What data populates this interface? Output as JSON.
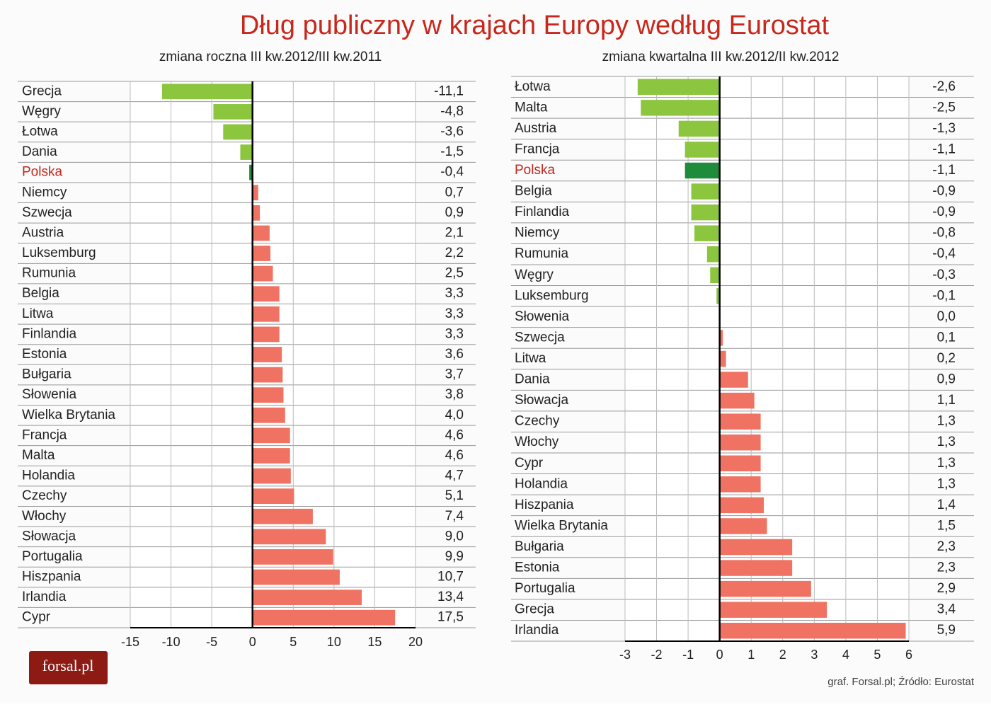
{
  "title": "Dług publiczny w krajach Europy według Eurostat",
  "source": "graf. Forsal.pl; Źródło: Eurostat",
  "logo": "forsal.pl",
  "chart_data": [
    {
      "type": "bar",
      "orientation": "horizontal",
      "subtitle": "zmiana roczna III kw.2012/III kw.2011",
      "categories": [
        "Grecja",
        "Węgry",
        "Łotwa",
        "Dania",
        "Polska",
        "Niemcy",
        "Szwecja",
        "Austria",
        "Luksemburg",
        "Rumunia",
        "Belgia",
        "Litwa",
        "Finlandia",
        "Estonia",
        "Bułgaria",
        "Słowenia",
        "Wielka Brytania",
        "Francja",
        "Malta",
        "Holandia",
        "Czechy",
        "Włochy",
        "Słowacja",
        "Portugalia",
        "Hiszpania",
        "Irlandia",
        "Cypr"
      ],
      "values": [
        -11.1,
        -4.8,
        -3.6,
        -1.5,
        -0.4,
        0.7,
        0.9,
        2.1,
        2.2,
        2.5,
        3.3,
        3.3,
        3.3,
        3.6,
        3.7,
        3.8,
        4.0,
        4.6,
        4.6,
        4.7,
        5.1,
        7.4,
        9.0,
        9.9,
        10.7,
        13.4,
        17.5
      ],
      "value_labels": [
        "-11,1",
        "-4,8",
        "-3,6",
        "-1,5",
        "-0,4",
        "0,7",
        "0,9",
        "2,1",
        "2,2",
        "2,5",
        "3,3",
        "3,3",
        "3,3",
        "3,6",
        "3,7",
        "3,8",
        "4,0",
        "4,6",
        "4,6",
        "4,7",
        "5,1",
        "7,4",
        "9,0",
        "9,9",
        "10,7",
        "13,4",
        "17,5"
      ],
      "colors": [
        "#8cc63e",
        "#8cc63e",
        "#8cc63e",
        "#8cc63e",
        "#1e8c3a",
        "#f07262",
        "#f07262",
        "#f07262",
        "#f07262",
        "#f07262",
        "#f07262",
        "#f07262",
        "#f07262",
        "#f07262",
        "#f07262",
        "#f07262",
        "#f07262",
        "#f07262",
        "#f07262",
        "#f07262",
        "#f07262",
        "#f07262",
        "#f07262",
        "#f07262",
        "#f07262",
        "#f07262",
        "#f07262"
      ],
      "label_colors": [
        "#222",
        "#222",
        "#222",
        "#222",
        "#c0281c",
        "#222",
        "#222",
        "#222",
        "#222",
        "#222",
        "#222",
        "#222",
        "#222",
        "#222",
        "#222",
        "#222",
        "#222",
        "#222",
        "#222",
        "#222",
        "#222",
        "#222",
        "#222",
        "#222",
        "#222",
        "#222",
        "#222"
      ],
      "xlim": [
        -15,
        20
      ],
      "xticks": [
        -15,
        -10,
        -5,
        0,
        5,
        10,
        15,
        20
      ],
      "grid": true
    },
    {
      "type": "bar",
      "orientation": "horizontal",
      "subtitle": "zmiana kwartalna III kw.2012/II kw.2012",
      "categories": [
        "Łotwa",
        "Malta",
        "Austria",
        "Francja",
        "Polska",
        "Belgia",
        "Finlandia",
        "Niemcy",
        "Rumunia",
        "Węgry",
        "Luksemburg",
        "Słowenia",
        "Szwecja",
        "Litwa",
        "Dania",
        "Słowacja",
        "Czechy",
        "Włochy",
        "Cypr",
        "Holandia",
        "Hiszpania",
        "Wielka Brytania",
        "Bułgaria",
        "Estonia",
        "Portugalia",
        "Grecja",
        "Irlandia"
      ],
      "values": [
        -2.6,
        -2.5,
        -1.3,
        -1.1,
        -1.1,
        -0.9,
        -0.9,
        -0.8,
        -0.4,
        -0.3,
        -0.1,
        0.0,
        0.1,
        0.2,
        0.9,
        1.1,
        1.3,
        1.3,
        1.3,
        1.3,
        1.4,
        1.5,
        2.3,
        2.3,
        2.9,
        3.4,
        5.9
      ],
      "value_labels": [
        "-2,6",
        "-2,5",
        "-1,3",
        "-1,1",
        "-1,1",
        "-0,9",
        "-0,9",
        "-0,8",
        "-0,4",
        "-0,3",
        "-0,1",
        "0,0",
        "0,1",
        "0,2",
        "0,9",
        "1,1",
        "1,3",
        "1,3",
        "1,3",
        "1,3",
        "1,4",
        "1,5",
        "2,3",
        "2,3",
        "2,9",
        "3,4",
        "5,9"
      ],
      "colors": [
        "#8cc63e",
        "#8cc63e",
        "#8cc63e",
        "#8cc63e",
        "#1e8c3a",
        "#8cc63e",
        "#8cc63e",
        "#8cc63e",
        "#8cc63e",
        "#8cc63e",
        "#8cc63e",
        "#f07262",
        "#f07262",
        "#f07262",
        "#f07262",
        "#f07262",
        "#f07262",
        "#f07262",
        "#f07262",
        "#f07262",
        "#f07262",
        "#f07262",
        "#f07262",
        "#f07262",
        "#f07262",
        "#f07262",
        "#f07262"
      ],
      "label_colors": [
        "#222",
        "#222",
        "#222",
        "#222",
        "#c0281c",
        "#222",
        "#222",
        "#222",
        "#222",
        "#222",
        "#222",
        "#222",
        "#222",
        "#222",
        "#222",
        "#222",
        "#222",
        "#222",
        "#222",
        "#222",
        "#222",
        "#222",
        "#222",
        "#222",
        "#222",
        "#222",
        "#222"
      ],
      "xlim": [
        -3,
        6
      ],
      "xticks": [
        -3,
        -2,
        -1,
        0,
        1,
        2,
        3,
        4,
        5,
        6
      ],
      "grid": true
    }
  ]
}
